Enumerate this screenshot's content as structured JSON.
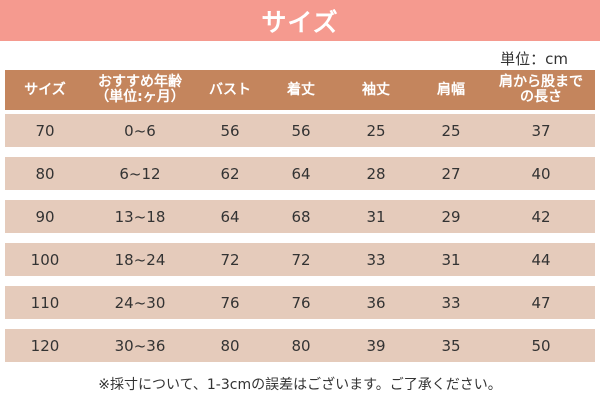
{
  "banner": {
    "title": "サイズ"
  },
  "unit_label": "単位：cm",
  "table": {
    "headers": [
      [
        "サイズ",
        ""
      ],
      [
        "おすすめ年齢",
        "（単位:ヶ月）"
      ],
      [
        "バスト",
        ""
      ],
      [
        "着丈",
        ""
      ],
      [
        "袖丈",
        ""
      ],
      [
        "肩幅",
        ""
      ],
      [
        "肩から股まで",
        "の長さ"
      ]
    ],
    "rows": [
      [
        "70",
        "0~6",
        "56",
        "56",
        "25",
        "25",
        "37"
      ],
      [
        "80",
        "6~12",
        "62",
        "64",
        "28",
        "27",
        "40"
      ],
      [
        "90",
        "13~18",
        "64",
        "68",
        "31",
        "29",
        "42"
      ],
      [
        "100",
        "18~24",
        "72",
        "72",
        "33",
        "31",
        "44"
      ],
      [
        "110",
        "24~30",
        "76",
        "76",
        "36",
        "33",
        "47"
      ],
      [
        "120",
        "30~36",
        "80",
        "80",
        "39",
        "35",
        "50"
      ]
    ]
  },
  "footnote": "※採寸について、1-3cmの誤差はございます。ご了承ください。",
  "colors": {
    "banner": "#f59a8f",
    "header_row": "#c4855d",
    "data_row": "#e5cbbb"
  }
}
